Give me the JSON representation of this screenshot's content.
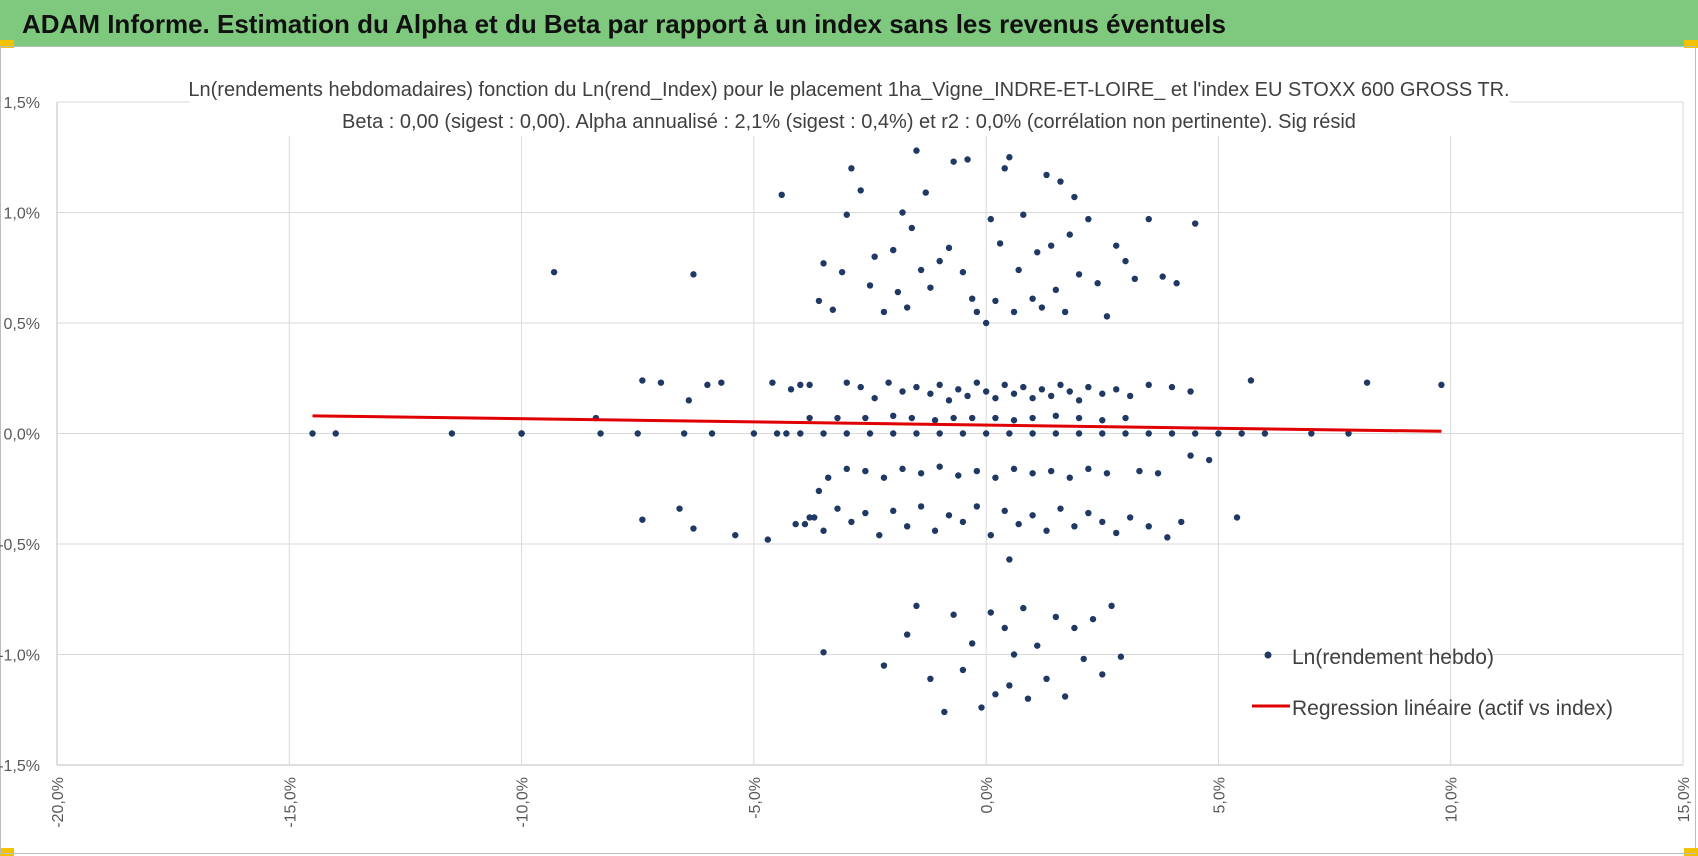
{
  "header": {
    "title": "ADAM Informe. Estimation du Alpha et du Beta par rapport à un index sans les revenus éventuels"
  },
  "colors": {
    "header_bg": "#7fc97f",
    "points": "#1f3864",
    "regression": "#e00000",
    "grid": "#d9d9d9",
    "corner": "#f2c200"
  },
  "chart_data": {
    "type": "scatter",
    "title_line1": "Ln(rendements hebdomadaires) fonction du Ln(rend_Index) pour le placement 1ha_Vigne_INDRE-ET-LOIRE_ et l'index EU STOXX 600 GROSS TR.",
    "title_line2": "Beta : 0,00 (sigest : 0,00). Alpha annualisé : 2,1% (sigest : 0,4%) et r2 : 0,0% (corrélation non pertinente). Sig résid",
    "xlim": [
      -20,
      15
    ],
    "ylim": [
      -1.5,
      1.5
    ],
    "x_ticks": [
      "-20,0%",
      "-15,0%",
      "-10,0%",
      "-5,0%",
      "0,0%",
      "5,0%",
      "10,0%",
      "15,0%"
    ],
    "y_ticks": [
      "1,5%",
      "1,0%",
      "0,5%",
      "0,0%",
      "-0,5%",
      "-1,0%",
      "-1,5%"
    ],
    "grid": true,
    "legend_position": "bottom-right",
    "legend": {
      "points_label": "Ln(rendement hebdo)",
      "line_label": "Regression linéaire (actif vs index)"
    },
    "regression": {
      "x": [
        -14.5,
        9.8
      ],
      "y": [
        0.08,
        0.01
      ]
    },
    "points_note": "Approximately 1000 weekly points; listed points below are a representative reading of the visible clusters.",
    "points": [
      [
        -14.5,
        0.0
      ],
      [
        -14.0,
        0.0
      ],
      [
        -11.5,
        0.0
      ],
      [
        -10.0,
        0.0
      ],
      [
        -10.0,
        0.0
      ],
      [
        -8.4,
        0.07
      ],
      [
        -8.3,
        0.0
      ],
      [
        -7.5,
        0.0
      ],
      [
        -7.4,
        0.24
      ],
      [
        -7.4,
        -0.39
      ],
      [
        -7.0,
        0.23
      ],
      [
        -6.5,
        0.0
      ],
      [
        -6.6,
        -0.34
      ],
      [
        -6.4,
        0.15
      ],
      [
        -6.3,
        -0.43
      ],
      [
        -6.0,
        0.22
      ],
      [
        -5.9,
        0.0
      ],
      [
        -5.7,
        0.23
      ],
      [
        -5.4,
        -0.46
      ],
      [
        -5.0,
        0.0
      ],
      [
        -4.7,
        -0.48
      ],
      [
        -4.6,
        0.23
      ],
      [
        -4.5,
        0.0
      ],
      [
        -4.3,
        0.0
      ],
      [
        -4.2,
        0.2
      ],
      [
        -4.0,
        0.22
      ],
      [
        -3.9,
        -0.41
      ],
      [
        -3.8,
        0.22
      ],
      [
        -3.7,
        -0.38
      ],
      [
        -3.6,
        0.6
      ],
      [
        -3.5,
        0.77
      ],
      [
        -3.5,
        -0.99
      ],
      [
        -3.3,
        0.56
      ],
      [
        -3.1,
        0.73
      ],
      [
        -3.0,
        0.99
      ],
      [
        -2.9,
        1.2
      ],
      [
        -2.7,
        1.1
      ],
      [
        -2.5,
        0.67
      ],
      [
        -2.4,
        0.8
      ],
      [
        -2.2,
        0.55
      ],
      [
        -2.0,
        0.83
      ],
      [
        -1.9,
        0.64
      ],
      [
        -1.8,
        1.0
      ],
      [
        -1.7,
        0.57
      ],
      [
        -1.6,
        0.93
      ],
      [
        -1.5,
        1.28
      ],
      [
        -1.4,
        0.74
      ],
      [
        -1.3,
        1.09
      ],
      [
        -1.2,
        0.66
      ],
      [
        -1.0,
        0.78
      ],
      [
        -0.8,
        0.84
      ],
      [
        -0.7,
        1.23
      ],
      [
        -0.5,
        0.73
      ],
      [
        -0.4,
        1.24
      ],
      [
        -0.3,
        0.61
      ],
      [
        -0.2,
        0.55
      ],
      [
        0.0,
        0.5
      ],
      [
        0.1,
        0.97
      ],
      [
        0.2,
        0.6
      ],
      [
        0.3,
        0.86
      ],
      [
        0.4,
        1.2
      ],
      [
        0.5,
        1.25
      ],
      [
        0.6,
        0.55
      ],
      [
        0.7,
        0.74
      ],
      [
        0.8,
        0.99
      ],
      [
        1.0,
        0.61
      ],
      [
        1.1,
        0.82
      ],
      [
        1.2,
        0.57
      ],
      [
        1.3,
        1.17
      ],
      [
        1.4,
        0.85
      ],
      [
        1.5,
        0.65
      ],
      [
        1.6,
        1.14
      ],
      [
        1.7,
        0.55
      ],
      [
        1.8,
        0.9
      ],
      [
        1.9,
        1.07
      ],
      [
        2.0,
        0.72
      ],
      [
        2.2,
        0.97
      ],
      [
        2.4,
        0.68
      ],
      [
        2.6,
        0.53
      ],
      [
        2.8,
        0.85
      ],
      [
        3.0,
        0.78
      ],
      [
        3.2,
        0.7
      ],
      [
        3.5,
        0.97
      ],
      [
        3.8,
        0.71
      ],
      [
        4.1,
        0.68
      ],
      [
        4.5,
        0.95
      ],
      [
        -3.0,
        0.23
      ],
      [
        -2.7,
        0.21
      ],
      [
        -2.4,
        0.16
      ],
      [
        -2.1,
        0.23
      ],
      [
        -1.8,
        0.19
      ],
      [
        -1.5,
        0.21
      ],
      [
        -1.2,
        0.18
      ],
      [
        -1.0,
        0.22
      ],
      [
        -0.8,
        0.15
      ],
      [
        -0.6,
        0.2
      ],
      [
        -0.4,
        0.17
      ],
      [
        -0.2,
        0.23
      ],
      [
        0.0,
        0.19
      ],
      [
        0.2,
        0.16
      ],
      [
        0.4,
        0.22
      ],
      [
        0.6,
        0.18
      ],
      [
        0.8,
        0.21
      ],
      [
        1.0,
        0.16
      ],
      [
        1.2,
        0.2
      ],
      [
        1.4,
        0.17
      ],
      [
        1.6,
        0.22
      ],
      [
        1.8,
        0.19
      ],
      [
        2.0,
        0.15
      ],
      [
        2.2,
        0.21
      ],
      [
        2.5,
        0.18
      ],
      [
        2.8,
        0.2
      ],
      [
        3.1,
        0.17
      ],
      [
        3.5,
        0.22
      ],
      [
        4.0,
        0.21
      ],
      [
        4.4,
        0.19
      ],
      [
        5.7,
        0.24
      ],
      [
        8.2,
        0.23
      ],
      [
        9.8,
        0.22
      ],
      [
        -3.8,
        0.07
      ],
      [
        -3.2,
        0.07
      ],
      [
        -2.6,
        0.07
      ],
      [
        -2.0,
        0.08
      ],
      [
        -1.6,
        0.07
      ],
      [
        -1.1,
        0.06
      ],
      [
        -0.7,
        0.07
      ],
      [
        -0.3,
        0.07
      ],
      [
        0.2,
        0.07
      ],
      [
        0.6,
        0.06
      ],
      [
        1.0,
        0.07
      ],
      [
        1.5,
        0.08
      ],
      [
        2.0,
        0.07
      ],
      [
        2.5,
        0.06
      ],
      [
        3.0,
        0.07
      ],
      [
        -4.0,
        0.0
      ],
      [
        -3.5,
        0.0
      ],
      [
        -3.0,
        0.0
      ],
      [
        -2.5,
        0.0
      ],
      [
        -2.0,
        0.0
      ],
      [
        -1.5,
        0.0
      ],
      [
        -1.0,
        0.0
      ],
      [
        -0.5,
        0.0
      ],
      [
        0.0,
        0.0
      ],
      [
        0.5,
        0.0
      ],
      [
        1.0,
        0.0
      ],
      [
        1.5,
        0.0
      ],
      [
        2.0,
        0.0
      ],
      [
        2.5,
        0.0
      ],
      [
        3.0,
        0.0
      ],
      [
        3.5,
        0.0
      ],
      [
        4.0,
        0.0
      ],
      [
        4.5,
        0.0
      ],
      [
        5.0,
        0.0
      ],
      [
        5.5,
        0.0
      ],
      [
        6.0,
        0.0
      ],
      [
        7.0,
        0.0
      ],
      [
        7.8,
        0.0
      ],
      [
        -3.6,
        -0.26
      ],
      [
        -3.4,
        -0.2
      ],
      [
        -3.0,
        -0.16
      ],
      [
        -2.6,
        -0.17
      ],
      [
        -2.2,
        -0.2
      ],
      [
        -1.8,
        -0.16
      ],
      [
        -1.4,
        -0.18
      ],
      [
        -1.0,
        -0.15
      ],
      [
        -0.6,
        -0.19
      ],
      [
        -0.2,
        -0.17
      ],
      [
        0.2,
        -0.2
      ],
      [
        0.6,
        -0.16
      ],
      [
        1.0,
        -0.18
      ],
      [
        1.4,
        -0.17
      ],
      [
        1.8,
        -0.2
      ],
      [
        2.2,
        -0.16
      ],
      [
        2.6,
        -0.18
      ],
      [
        3.3,
        -0.17
      ],
      [
        4.4,
        -0.1
      ],
      [
        4.8,
        -0.12
      ],
      [
        3.7,
        -0.18
      ],
      [
        -4.1,
        -0.41
      ],
      [
        -3.8,
        -0.38
      ],
      [
        -3.5,
        -0.44
      ],
      [
        -3.2,
        -0.34
      ],
      [
        -2.9,
        -0.4
      ],
      [
        -2.6,
        -0.36
      ],
      [
        -2.3,
        -0.46
      ],
      [
        -2.0,
        -0.35
      ],
      [
        -1.7,
        -0.42
      ],
      [
        -1.4,
        -0.33
      ],
      [
        -1.1,
        -0.44
      ],
      [
        -0.8,
        -0.37
      ],
      [
        -0.5,
        -0.4
      ],
      [
        -0.2,
        -0.33
      ],
      [
        0.1,
        -0.46
      ],
      [
        0.4,
        -0.35
      ],
      [
        0.7,
        -0.41
      ],
      [
        1.0,
        -0.37
      ],
      [
        1.3,
        -0.44
      ],
      [
        1.6,
        -0.34
      ],
      [
        1.9,
        -0.42
      ],
      [
        2.2,
        -0.36
      ],
      [
        2.5,
        -0.4
      ],
      [
        2.8,
        -0.45
      ],
      [
        3.1,
        -0.38
      ],
      [
        3.5,
        -0.42
      ],
      [
        3.9,
        -0.47
      ],
      [
        4.2,
        -0.4
      ],
      [
        5.4,
        -0.38
      ],
      [
        0.5,
        -0.57
      ],
      [
        -2.2,
        -1.05
      ],
      [
        -1.7,
        -0.91
      ],
      [
        -1.5,
        -0.78
      ],
      [
        -1.2,
        -1.11
      ],
      [
        -0.9,
        -1.26
      ],
      [
        -0.7,
        -0.82
      ],
      [
        -0.5,
        -1.07
      ],
      [
        -0.3,
        -0.95
      ],
      [
        -0.1,
        -1.24
      ],
      [
        0.1,
        -0.81
      ],
      [
        0.2,
        -1.18
      ],
      [
        0.4,
        -0.88
      ],
      [
        0.5,
        -1.14
      ],
      [
        0.6,
        -1.0
      ],
      [
        0.8,
        -0.79
      ],
      [
        0.9,
        -1.2
      ],
      [
        1.1,
        -0.96
      ],
      [
        1.3,
        -1.11
      ],
      [
        1.5,
        -0.83
      ],
      [
        1.7,
        -1.19
      ],
      [
        1.9,
        -0.88
      ],
      [
        2.1,
        -1.02
      ],
      [
        2.3,
        -0.84
      ],
      [
        2.5,
        -1.09
      ],
      [
        2.7,
        -0.78
      ],
      [
        2.9,
        -1.01
      ],
      [
        -9.3,
        0.73
      ],
      [
        -6.3,
        0.72
      ],
      [
        -4.4,
        1.08
      ]
    ]
  }
}
